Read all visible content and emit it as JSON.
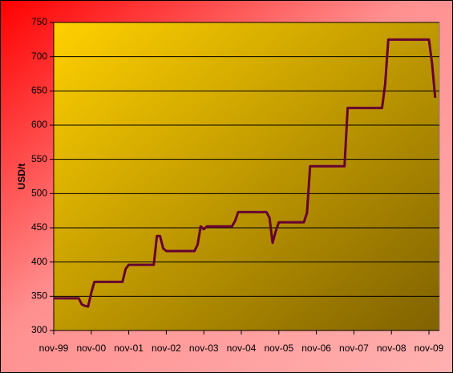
{
  "chart_data": {
    "type": "line",
    "y_label": "USD/t",
    "categories": [
      "nov-99",
      null,
      null,
      null,
      null,
      null,
      null,
      null,
      null,
      null,
      null,
      null,
      "nov-00",
      null,
      null,
      null,
      null,
      null,
      null,
      null,
      null,
      null,
      null,
      null,
      "nov-01",
      null,
      null,
      null,
      null,
      null,
      null,
      null,
      null,
      null,
      null,
      null,
      "nov-02",
      null,
      null,
      null,
      null,
      null,
      null,
      null,
      null,
      null,
      null,
      null,
      "nov-03",
      null,
      null,
      null,
      null,
      null,
      null,
      null,
      null,
      null,
      null,
      null,
      "nov-04",
      null,
      null,
      null,
      null,
      null,
      null,
      null,
      null,
      null,
      null,
      null,
      "nov-05",
      null,
      null,
      null,
      null,
      null,
      null,
      null,
      null,
      null,
      null,
      null,
      "nov-06",
      null,
      null,
      null,
      null,
      null,
      null,
      null,
      null,
      null,
      null,
      null,
      "nov-07",
      null,
      null,
      null,
      null,
      null,
      null,
      null,
      null,
      null,
      null,
      null,
      "nov-08",
      null,
      null,
      null,
      null,
      null,
      null,
      null,
      null,
      null,
      null,
      null,
      "nov-09",
      null,
      null
    ],
    "series": [
      {
        "color": "#660033",
        "values": [
          347,
          347,
          347,
          347,
          347,
          347,
          347,
          347,
          347,
          338,
          336,
          335,
          355,
          371,
          371,
          371,
          371,
          371,
          371,
          371,
          371,
          371,
          371,
          390,
          396,
          396,
          396,
          396,
          396,
          396,
          396,
          396,
          396,
          438,
          438,
          420,
          416,
          416,
          416,
          416,
          416,
          416,
          416,
          416,
          416,
          416,
          425,
          452,
          448,
          452,
          452,
          452,
          452,
          452,
          452,
          452,
          452,
          452,
          460,
          473,
          473,
          473,
          473,
          473,
          473,
          473,
          473,
          473,
          473,
          465,
          428,
          445,
          458,
          458,
          458,
          458,
          458,
          458,
          458,
          458,
          458,
          472,
          540,
          540,
          540,
          540,
          540,
          540,
          540,
          540,
          540,
          540,
          540,
          540,
          625,
          625,
          625,
          625,
          625,
          625,
          625,
          625,
          625,
          625,
          625,
          625,
          660,
          725,
          725,
          725,
          725,
          725,
          725,
          725,
          725,
          725,
          725,
          725,
          725,
          725,
          725,
          690,
          640
        ]
      }
    ],
    "ylim": [
      300,
      750
    ],
    "yticks": [
      300,
      350,
      400,
      450,
      500,
      550,
      600,
      650,
      700,
      750
    ],
    "grid": true
  }
}
